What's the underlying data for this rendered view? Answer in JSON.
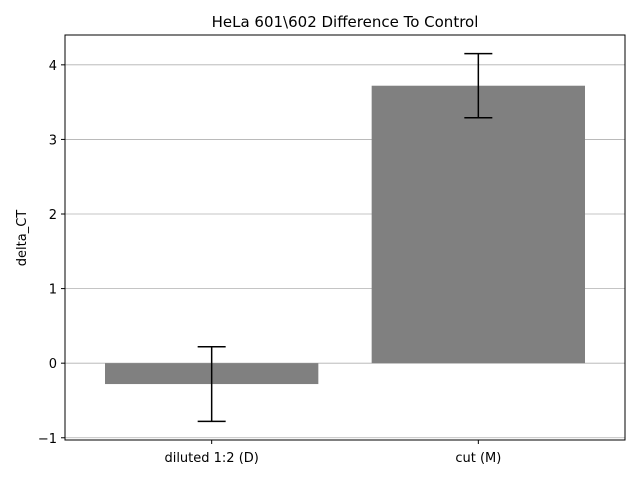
{
  "chart_data": {
    "type": "bar",
    "title": "HeLa 601\\602 Difference To Control",
    "xlabel": "",
    "ylabel": "delta_CT",
    "categories": [
      "diluted 1:2 (D)",
      "cut (M)"
    ],
    "values": [
      -0.28,
      3.72
    ],
    "errors": [
      0.5,
      0.43
    ],
    "ylim": [
      -1.03,
      4.4
    ],
    "yticks": [
      -1,
      0,
      1,
      2,
      3,
      4
    ],
    "ytick_labels": [
      "−1",
      "0",
      "1",
      "2",
      "3",
      "4"
    ],
    "grid": "y",
    "bar_color": "#808080",
    "error_color": "#000000",
    "grid_color": "#b0b0b0"
  }
}
